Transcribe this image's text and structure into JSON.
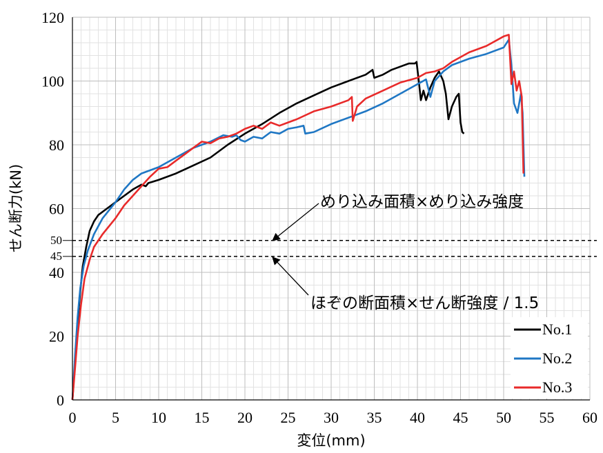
{
  "chart_data": {
    "type": "line",
    "xlabel": "変位(mm)",
    "ylabel": "せん断力(kN)",
    "xlim": [
      0,
      60
    ],
    "ylim": [
      0,
      120
    ],
    "x_ticks": [
      0,
      5,
      10,
      15,
      20,
      25,
      30,
      35,
      40,
      45,
      50,
      55,
      60
    ],
    "y_ticks": [
      0,
      20,
      40,
      60,
      80,
      100,
      120
    ],
    "grid": true,
    "minor_grid": true,
    "legend_position": "bottom-right",
    "reference_lines": [
      {
        "y": 50,
        "label": "50",
        "style": "dashed"
      },
      {
        "y": 45,
        "label": "45",
        "style": "dashed"
      }
    ],
    "annotations": [
      {
        "text": "めり込み面積×めり込み強度",
        "points_to": [
          23,
          50
        ]
      },
      {
        "text": "ほぞの断面積×せん断強度 / 1.5",
        "points_to": [
          23,
          45
        ]
      }
    ],
    "series": [
      {
        "name": "No.1",
        "color": "#000000",
        "points": [
          [
            0,
            0
          ],
          [
            0.3,
            12
          ],
          [
            0.6,
            24
          ],
          [
            0.9,
            34
          ],
          [
            1.2,
            42
          ],
          [
            1.6,
            48
          ],
          [
            2,
            53
          ],
          [
            2.5,
            56
          ],
          [
            3,
            58
          ],
          [
            4,
            60
          ],
          [
            5,
            62
          ],
          [
            6,
            64
          ],
          [
            7,
            66
          ],
          [
            8,
            67.5
          ],
          [
            8.5,
            67
          ],
          [
            8.8,
            68
          ],
          [
            10,
            69
          ],
          [
            12,
            71
          ],
          [
            14,
            73.5
          ],
          [
            16,
            76
          ],
          [
            18,
            80
          ],
          [
            20,
            83.5
          ],
          [
            22,
            86.5
          ],
          [
            24,
            90
          ],
          [
            26,
            93
          ],
          [
            28,
            95.5
          ],
          [
            30,
            98
          ],
          [
            32,
            100
          ],
          [
            34,
            102
          ],
          [
            34.8,
            103.5
          ],
          [
            35,
            101
          ],
          [
            36,
            102
          ],
          [
            37,
            103.5
          ],
          [
            38,
            104.5
          ],
          [
            39,
            105.5
          ],
          [
            39.7,
            105.5
          ],
          [
            39.9,
            106
          ],
          [
            40.2,
            99
          ],
          [
            40.4,
            94
          ],
          [
            40.7,
            97
          ],
          [
            41,
            94
          ],
          [
            41.5,
            98
          ],
          [
            42,
            101
          ],
          [
            42.5,
            103
          ],
          [
            43,
            100
          ],
          [
            43.3,
            96
          ],
          [
            43.6,
            88
          ],
          [
            44,
            92
          ],
          [
            44.5,
            95
          ],
          [
            44.8,
            96
          ],
          [
            45,
            87
          ],
          [
            45.2,
            84
          ],
          [
            45.4,
            83.5
          ]
        ]
      },
      {
        "name": "No.2",
        "color": "#1f77c4",
        "points": [
          [
            0,
            0
          ],
          [
            0.3,
            14
          ],
          [
            0.6,
            26
          ],
          [
            0.9,
            35
          ],
          [
            1.3,
            42
          ],
          [
            1.8,
            47
          ],
          [
            2.5,
            52
          ],
          [
            3.5,
            57
          ],
          [
            5,
            62
          ],
          [
            6,
            66
          ],
          [
            7,
            69
          ],
          [
            8,
            71
          ],
          [
            10,
            73
          ],
          [
            12,
            76
          ],
          [
            14,
            79
          ],
          [
            16,
            81
          ],
          [
            17.5,
            83
          ],
          [
            18.5,
            82.5
          ],
          [
            19,
            83
          ],
          [
            19.5,
            81.5
          ],
          [
            20,
            81
          ],
          [
            21,
            82.5
          ],
          [
            22,
            82
          ],
          [
            23,
            84
          ],
          [
            24,
            83.5
          ],
          [
            25,
            85
          ],
          [
            26,
            85.5
          ],
          [
            26.8,
            86
          ],
          [
            27,
            83.5
          ],
          [
            28,
            84
          ],
          [
            30,
            86.5
          ],
          [
            32,
            88.5
          ],
          [
            34,
            90.5
          ],
          [
            36,
            93
          ],
          [
            38,
            96
          ],
          [
            40,
            99
          ],
          [
            41,
            100.5
          ],
          [
            41.5,
            95
          ],
          [
            42,
            100
          ],
          [
            43,
            103
          ],
          [
            44,
            105
          ],
          [
            46,
            107
          ],
          [
            48,
            108.5
          ],
          [
            50,
            110.5
          ],
          [
            50.6,
            113
          ],
          [
            50.9,
            105
          ],
          [
            51.2,
            93
          ],
          [
            51.6,
            90
          ],
          [
            52,
            96
          ],
          [
            52.2,
            90
          ],
          [
            52.4,
            70
          ]
        ]
      },
      {
        "name": "No.3",
        "color": "#e82a2a",
        "points": [
          [
            0,
            0
          ],
          [
            0.3,
            10
          ],
          [
            0.6,
            20
          ],
          [
            1,
            30
          ],
          [
            1.4,
            38
          ],
          [
            2,
            44
          ],
          [
            2.5,
            48
          ],
          [
            3.5,
            52
          ],
          [
            5,
            57
          ],
          [
            6,
            61
          ],
          [
            7,
            64
          ],
          [
            8,
            67
          ],
          [
            9,
            70
          ],
          [
            10,
            72.5
          ],
          [
            11,
            73
          ],
          [
            12,
            75
          ],
          [
            13,
            77
          ],
          [
            14,
            79
          ],
          [
            15,
            81
          ],
          [
            16,
            80.5
          ],
          [
            17,
            82
          ],
          [
            18,
            82.5
          ],
          [
            19,
            83.5
          ],
          [
            20,
            85
          ],
          [
            21,
            86
          ],
          [
            22,
            85
          ],
          [
            23,
            87
          ],
          [
            24,
            86
          ],
          [
            25,
            87
          ],
          [
            26,
            88
          ],
          [
            28,
            90.5
          ],
          [
            30,
            92
          ],
          [
            32,
            94
          ],
          [
            32.4,
            95
          ],
          [
            32.5,
            87.5
          ],
          [
            33,
            92
          ],
          [
            34,
            94.5
          ],
          [
            36,
            97
          ],
          [
            38,
            99.5
          ],
          [
            40,
            101
          ],
          [
            41,
            102.5
          ],
          [
            42,
            103
          ],
          [
            43,
            104
          ],
          [
            44,
            106
          ],
          [
            46,
            109
          ],
          [
            48,
            111
          ],
          [
            50,
            114
          ],
          [
            50.6,
            114.5
          ],
          [
            50.9,
            99
          ],
          [
            51.2,
            103
          ],
          [
            51.5,
            97
          ],
          [
            51.8,
            100
          ],
          [
            52.1,
            95
          ],
          [
            52.3,
            71
          ]
        ]
      }
    ]
  }
}
